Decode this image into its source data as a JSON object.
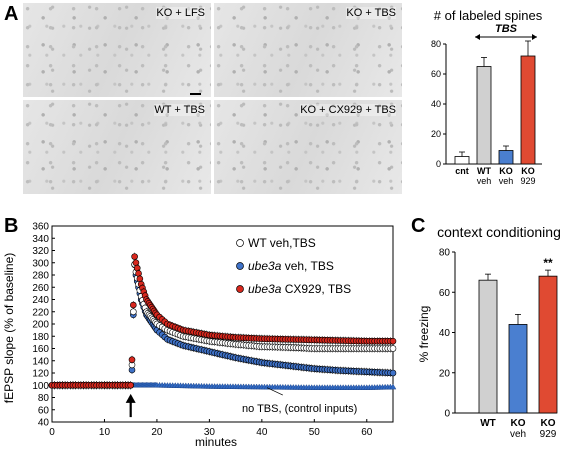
{
  "panel_labels": {
    "a": "A",
    "b": "B",
    "c": "C"
  },
  "micrographs": [
    {
      "label": "KO + LFS"
    },
    {
      "label": "KO + TBS"
    },
    {
      "label": "WT + TBS"
    },
    {
      "label": "KO + CX929 + TBS"
    }
  ],
  "colors": {
    "wt": "#d0d0d0",
    "ko_veh": "#4a7fd0",
    "ko_929": "#e04a32",
    "cnt": "#ffffff"
  },
  "chart_data": [
    {
      "id": "spines",
      "type": "bar",
      "title": "# of labeled spines",
      "annotation": "TBS",
      "categories": [
        "cnt",
        "WT\nveh",
        "KO\nveh",
        "KO\n929"
      ],
      "values": [
        5,
        65,
        9,
        72
      ],
      "errors": [
        3,
        6,
        3,
        10
      ],
      "ylim": [
        0,
        80
      ],
      "yticks": [
        0,
        20,
        40,
        60,
        80
      ]
    },
    {
      "id": "fepsp",
      "type": "scatter",
      "ylabel": "fEPSP slope (% of baseline)",
      "xlabel": "minutes",
      "xlim": [
        0,
        65
      ],
      "ylim": [
        40,
        360
      ],
      "xticks": [
        0,
        10,
        20,
        30,
        40,
        50,
        60
      ],
      "yticks": [
        40,
        60,
        80,
        100,
        120,
        140,
        160,
        180,
        200,
        220,
        240,
        260,
        280,
        300,
        320,
        340,
        360
      ],
      "tbs_time": 15,
      "annotation": "no TBS, (control inputs)",
      "series": [
        {
          "name_italic": "",
          "name_rest": "WT veh,TBS",
          "fill": "#ffffff",
          "points": [
            [
              0,
              100
            ],
            [
              5,
              100
            ],
            [
              10,
              100
            ],
            [
              15,
              100
            ],
            [
              15.3,
              140
            ],
            [
              15.7,
              300
            ],
            [
              16,
              285
            ],
            [
              17,
              245
            ],
            [
              18,
              220
            ],
            [
              20,
              200
            ],
            [
              22,
              190
            ],
            [
              25,
              180
            ],
            [
              30,
              172
            ],
            [
              35,
              167
            ],
            [
              40,
              163
            ],
            [
              45,
              162
            ],
            [
              50,
              160
            ],
            [
              55,
              160
            ],
            [
              60,
              160
            ],
            [
              65,
              160
            ]
          ]
        },
        {
          "name_italic": "ube3a",
          "name_rest": " veh, TBS",
          "fill": "#3f72c8",
          "points": [
            [
              0,
              100
            ],
            [
              5,
              100
            ],
            [
              10,
              100
            ],
            [
              15,
              100
            ],
            [
              15.3,
              130
            ],
            [
              15.7,
              300
            ],
            [
              16,
              280
            ],
            [
              17,
              240
            ],
            [
              18,
              215
            ],
            [
              20,
              190
            ],
            [
              22,
              175
            ],
            [
              25,
              165
            ],
            [
              30,
              155
            ],
            [
              35,
              145
            ],
            [
              40,
              137
            ],
            [
              45,
              132
            ],
            [
              50,
              127
            ],
            [
              55,
              124
            ],
            [
              60,
              122
            ],
            [
              65,
              120
            ]
          ]
        },
        {
          "name_italic": "ube3a",
          "name_rest": " CX929, TBS",
          "fill": "#d8281e",
          "points": [
            [
              0,
              100
            ],
            [
              5,
              100
            ],
            [
              10,
              100
            ],
            [
              15,
              100
            ],
            [
              15.3,
              150
            ],
            [
              15.7,
              312
            ],
            [
              16,
              300
            ],
            [
              17,
              265
            ],
            [
              18,
              240
            ],
            [
              20,
              215
            ],
            [
              22,
              200
            ],
            [
              25,
              190
            ],
            [
              30,
              182
            ],
            [
              35,
              178
            ],
            [
              40,
              176
            ],
            [
              45,
              175
            ],
            [
              50,
              174
            ],
            [
              55,
              173
            ],
            [
              60,
              172
            ],
            [
              65,
              172
            ]
          ]
        },
        {
          "name_italic": "",
          "name_rest": "",
          "fill": "#2f68c2",
          "control": true,
          "points": [
            [
              0,
              100
            ],
            [
              10,
              100
            ],
            [
              20,
              100
            ],
            [
              30,
              98
            ],
            [
              40,
              97
            ],
            [
              50,
              96
            ],
            [
              60,
              96
            ],
            [
              65,
              97
            ]
          ]
        }
      ]
    },
    {
      "id": "context",
      "type": "bar",
      "title": "context conditioning",
      "ylabel": "% freezing",
      "significance": "**",
      "categories": [
        "WT",
        "KO\nveh",
        "KO\n929"
      ],
      "values": [
        66,
        44,
        68
      ],
      "errors": [
        3,
        5,
        3
      ],
      "ylim": [
        0,
        80
      ],
      "yticks": [
        0,
        20,
        40,
        60,
        80
      ]
    }
  ]
}
